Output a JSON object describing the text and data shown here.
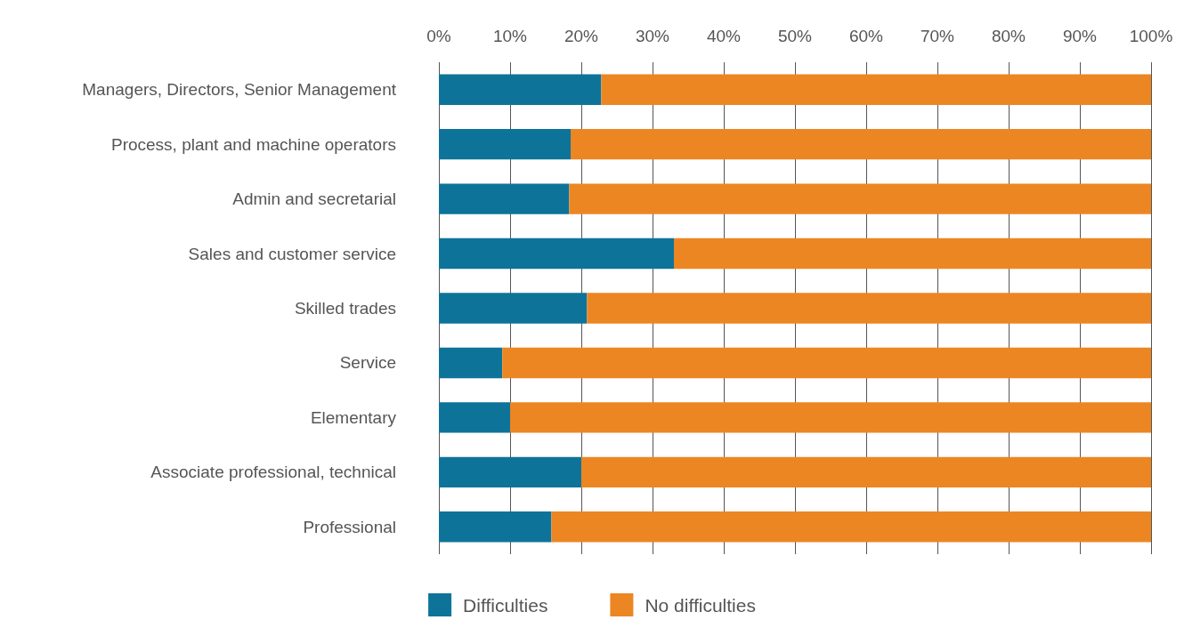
{
  "chart_data": {
    "type": "bar",
    "orientation": "horizontal",
    "stacked": true,
    "categories": [
      "Managers, Directors, Senior Management",
      "Process, plant and machine operators",
      "Admin and secretarial",
      "Sales and customer service",
      "Skilled trades",
      "Service",
      "Elementary",
      "Associate professional, technical",
      "Professional"
    ],
    "series": [
      {
        "name": "Difficulties",
        "color": "#0e7399",
        "values": [
          22.8,
          18.5,
          18.3,
          33,
          20.8,
          8.9,
          10,
          20,
          15.8
        ]
      },
      {
        "name": "No difficulties",
        "color": "#ec8623",
        "values": [
          77.2,
          81.5,
          81.7,
          67,
          79.2,
          91.1,
          90,
          80,
          84.2
        ]
      }
    ],
    "xlim": [
      0,
      100
    ],
    "xticks": [
      {
        "value": 0,
        "label": "0%"
      },
      {
        "value": 10,
        "label": "10%"
      },
      {
        "value": 20,
        "label": "20%"
      },
      {
        "value": 30,
        "label": "30%"
      },
      {
        "value": 40,
        "label": "40%"
      },
      {
        "value": 50,
        "label": "50%"
      },
      {
        "value": 60,
        "label": "60%"
      },
      {
        "value": 70,
        "label": "70%"
      },
      {
        "value": 80,
        "label": "80%"
      },
      {
        "value": 90,
        "label": "90%"
      },
      {
        "value": 100,
        "label": "100%"
      }
    ],
    "grid": "x",
    "legend": "bottom"
  }
}
